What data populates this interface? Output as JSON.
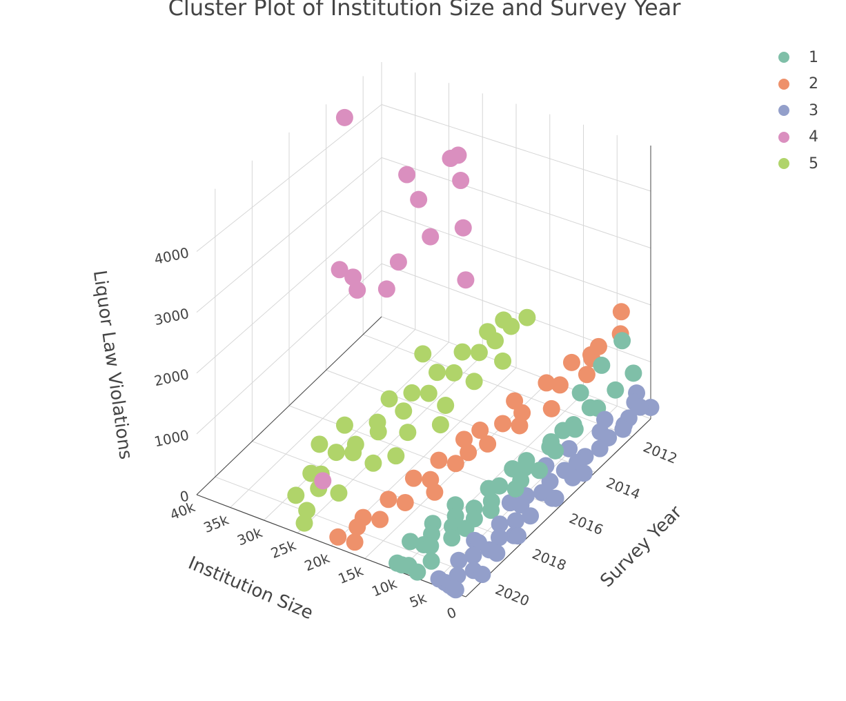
{
  "chart_data": {
    "type": "scatter3d",
    "title": "Cluster Plot of Institution Size and Survey Year",
    "xlabel": "Institution Size",
    "ylabel": "Survey Year",
    "zlabel": "Liquor Law Violations",
    "x_ticks": [
      "0",
      "5k",
      "10k",
      "15k",
      "20k",
      "25k",
      "30k",
      "35k",
      "40k"
    ],
    "y_ticks": [
      "2012",
      "2014",
      "2016",
      "2018",
      "2020"
    ],
    "z_ticks": [
      "0",
      "1000",
      "2000",
      "3000",
      "4000"
    ],
    "xlim": [
      0,
      40000
    ],
    "ylim": [
      2011,
      2021
    ],
    "zlim": [
      0,
      4800
    ],
    "grid": true,
    "legend_position": "top-right",
    "colors": {
      "1": "#7fbfa8",
      "2": "#ee916b",
      "3": "#939fca",
      "4": "#da8fbf",
      "5": "#b0d46a"
    },
    "series": [
      {
        "name": "1",
        "points": [
          [
            1500,
            2012,
            1600
          ],
          [
            1800,
            2013,
            1450
          ],
          [
            2200,
            2014,
            1250
          ],
          [
            1200,
            2011.5,
            900
          ],
          [
            2500,
            2012,
            700
          ],
          [
            3500,
            2013,
            650
          ],
          [
            3000,
            2014,
            600
          ],
          [
            4000,
            2015,
            550
          ],
          [
            2800,
            2016,
            500
          ],
          [
            5000,
            2016,
            450
          ],
          [
            6000,
            2017,
            400
          ],
          [
            4500,
            2018,
            350
          ],
          [
            5500,
            2019,
            300
          ],
          [
            7000,
            2018,
            280
          ],
          [
            7500,
            2019,
            250
          ],
          [
            8000,
            2020,
            200
          ],
          [
            9000,
            2020,
            180
          ],
          [
            8500,
            2021,
            150
          ],
          [
            9500,
            2021,
            120
          ],
          [
            6500,
            2020.5,
            160
          ],
          [
            7200,
            2021,
            100
          ],
          [
            3200,
            2015,
            520
          ],
          [
            4200,
            2016.5,
            420
          ],
          [
            3800,
            2012.5,
            480
          ],
          [
            4600,
            2013.5,
            460
          ],
          [
            5200,
            2014.5,
            440
          ],
          [
            6100,
            2015.5,
            380
          ],
          [
            6800,
            2016,
            360
          ],
          [
            5800,
            2017.5,
            300
          ],
          [
            7600,
            2017,
            290
          ],
          [
            8400,
            2018.5,
            240
          ],
          [
            9200,
            2019.5,
            200
          ],
          [
            9800,
            2018,
            220
          ],
          [
            10400,
            2019,
            180
          ],
          [
            11000,
            2020,
            150
          ],
          [
            10200,
            2021,
            120
          ],
          [
            6200,
            2019.5,
            260
          ],
          [
            5600,
            2018.5,
            310
          ],
          [
            4800,
            2014,
            500
          ],
          [
            3600,
            2017,
            450
          ]
        ]
      },
      {
        "name": "2",
        "points": [
          [
            3000,
            2011.5,
            1900
          ],
          [
            4500,
            2011,
            1300
          ],
          [
            5000,
            2012,
            1350
          ],
          [
            4000,
            2013,
            1200
          ],
          [
            6000,
            2012,
            1100
          ],
          [
            7500,
            2011.5,
            950
          ],
          [
            9000,
            2012,
            900
          ],
          [
            8000,
            2013,
            850
          ],
          [
            6500,
            2014,
            800
          ],
          [
            10000,
            2013,
            800
          ],
          [
            12000,
            2014,
            700
          ],
          [
            11000,
            2015,
            650
          ],
          [
            13000,
            2015.5,
            600
          ],
          [
            14000,
            2016,
            550
          ],
          [
            12500,
            2017,
            500
          ],
          [
            15000,
            2017,
            450
          ],
          [
            16000,
            2018,
            400
          ],
          [
            14500,
            2019,
            350
          ],
          [
            17000,
            2019,
            300
          ],
          [
            18000,
            2020,
            250
          ],
          [
            16500,
            2021,
            200
          ],
          [
            19000,
            2021,
            180
          ],
          [
            9500,
            2014.5,
            750
          ],
          [
            10500,
            2016,
            620
          ],
          [
            13500,
            2018,
            480
          ],
          [
            11500,
            2018.5,
            500
          ],
          [
            15500,
            2020,
            320
          ],
          [
            17500,
            2020.5,
            260
          ],
          [
            8500,
            2015,
            720
          ],
          [
            12000,
            2016.5,
            560
          ]
        ]
      },
      {
        "name": "3",
        "points": [
          [
            0,
            2011,
            200
          ],
          [
            500,
            2012,
            300
          ],
          [
            1000,
            2011.5,
            400
          ],
          [
            800,
            2013,
            250
          ],
          [
            1200,
            2012,
            150
          ],
          [
            1500,
            2014,
            200
          ],
          [
            2000,
            2013,
            300
          ],
          [
            300,
            2014.5,
            120
          ],
          [
            600,
            2015,
            180
          ],
          [
            1800,
            2015,
            250
          ],
          [
            2400,
            2016,
            150
          ],
          [
            900,
            2016,
            120
          ],
          [
            1400,
            2017,
            100
          ],
          [
            2800,
            2017,
            220
          ],
          [
            3200,
            2018,
            180
          ],
          [
            1100,
            2018,
            80
          ],
          [
            2000,
            2019,
            100
          ],
          [
            3600,
            2019,
            150
          ],
          [
            1600,
            2020,
            70
          ],
          [
            2600,
            2020.5,
            90
          ],
          [
            4000,
            2021,
            120
          ],
          [
            1800,
            2021,
            60
          ],
          [
            200,
            2011.5,
            350
          ],
          [
            700,
            2013.5,
            220
          ],
          [
            400,
            2016,
            140
          ],
          [
            2200,
            2017.5,
            130
          ],
          [
            3000,
            2019.5,
            110
          ],
          [
            900,
            2019,
            90
          ],
          [
            2400,
            2021,
            80
          ],
          [
            3400,
            2016.5,
            200
          ],
          [
            4200,
            2019,
            160
          ],
          [
            1300,
            2014.5,
            260
          ],
          [
            2600,
            2015.5,
            180
          ],
          [
            3800,
            2020,
            140
          ],
          [
            500,
            2018,
            100
          ],
          [
            1900,
            2018.5,
            160
          ],
          [
            3100,
            2021,
            100
          ],
          [
            4400,
            2017,
            190
          ],
          [
            300,
            2020,
            60
          ],
          [
            1500,
            2021,
            50
          ],
          [
            0,
            2012.5,
            280
          ],
          [
            2700,
            2012.5,
            330
          ],
          [
            3900,
            2014,
            230
          ],
          [
            4600,
            2015,
            210
          ],
          [
            2100,
            2011,
            360
          ]
        ]
      },
      {
        "name": "4",
        "points": [
          [
            38000,
            2014,
            1900
          ],
          [
            36000,
            2014,
            1850
          ],
          [
            34000,
            2014.5,
            1850
          ],
          [
            32000,
            2013,
            2000
          ],
          [
            31000,
            2014,
            1850
          ],
          [
            30000,
            2012,
            2250
          ],
          [
            29000,
            2013,
            3250
          ],
          [
            28000,
            2014,
            4000
          ],
          [
            27000,
            2012,
            3800
          ],
          [
            22000,
            2013,
            2100
          ],
          [
            21000,
            2013.5,
            3200
          ],
          [
            20000,
            2014,
            4200
          ],
          [
            19000,
            2014.5,
            4800
          ],
          [
            40000,
            2013,
            4300
          ],
          [
            24000,
            2020,
            600
          ]
        ]
      },
      {
        "name": "5",
        "points": [
          [
            28000,
            2020,
            200
          ],
          [
            27000,
            2019,
            300
          ],
          [
            26000,
            2019.5,
            250
          ],
          [
            25000,
            2018,
            450
          ],
          [
            24000,
            2017,
            550
          ],
          [
            23000,
            2016,
            650
          ],
          [
            22000,
            2015,
            700
          ],
          [
            21000,
            2014,
            800
          ],
          [
            20000,
            2013,
            900
          ],
          [
            19000,
            2012.5,
            1000
          ],
          [
            18000,
            2012,
            1150
          ],
          [
            17000,
            2011.5,
            1200
          ],
          [
            25500,
            2016.5,
            500
          ],
          [
            24500,
            2015,
            600
          ],
          [
            23500,
            2014,
            700
          ],
          [
            22500,
            2013,
            800
          ],
          [
            21500,
            2012,
            900
          ],
          [
            20500,
            2011.5,
            1000
          ],
          [
            26000,
            2017.5,
            400
          ],
          [
            27500,
            2018,
            350
          ],
          [
            28500,
            2019,
            250
          ],
          [
            29000,
            2017,
            450
          ],
          [
            30000,
            2018,
            380
          ],
          [
            19500,
            2015,
            600
          ],
          [
            21000,
            2016.5,
            520
          ],
          [
            22000,
            2018,
            400
          ],
          [
            23000,
            2019.5,
            300
          ],
          [
            24000,
            2021,
            200
          ],
          [
            25000,
            2020.5,
            220
          ],
          [
            18000,
            2014,
            780
          ],
          [
            17500,
            2016,
            650
          ],
          [
            26500,
            2015.5,
            560
          ],
          [
            27000,
            2013.5,
            720
          ],
          [
            20000,
            2017.5,
            460
          ],
          [
            16500,
            2013,
            900
          ]
        ]
      }
    ]
  }
}
